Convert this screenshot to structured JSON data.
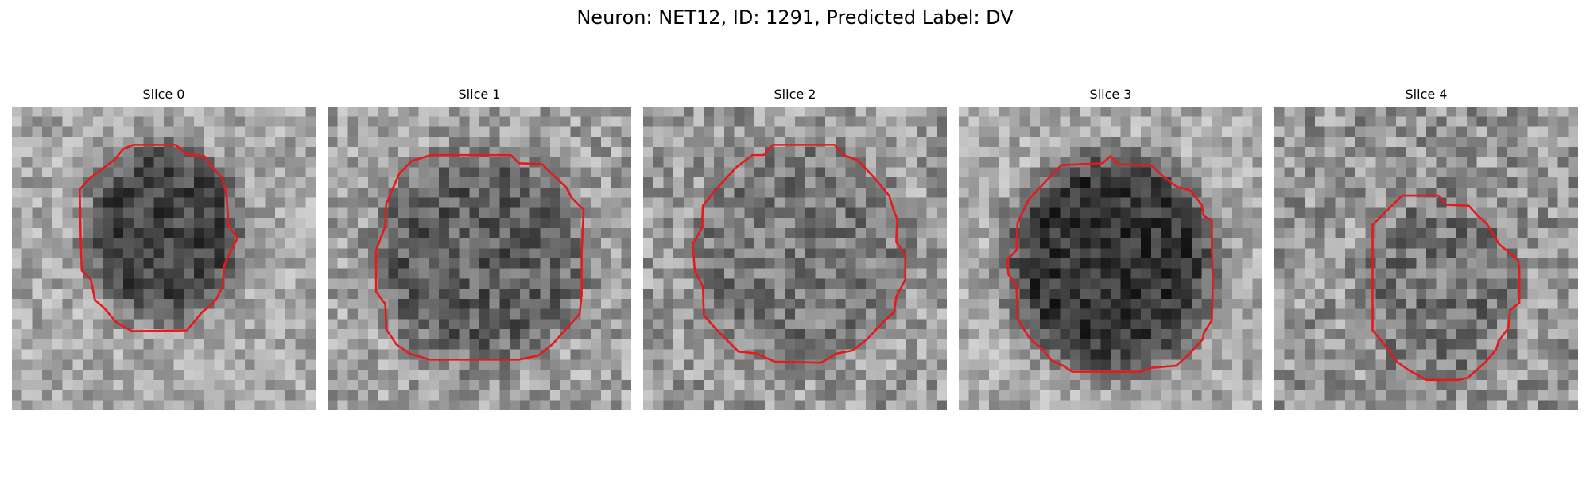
{
  "figure": {
    "title": "Neuron: NET12, ID: 1291, Predicted Label: DV"
  },
  "panels": [
    {
      "title": "Slice 0",
      "image": "grayscale-intensity-grid",
      "outline": "roi-contour"
    },
    {
      "title": "Slice 1",
      "image": "grayscale-intensity-grid",
      "outline": "roi-contour"
    },
    {
      "title": "Slice 2",
      "image": "grayscale-intensity-grid",
      "outline": "roi-contour"
    },
    {
      "title": "Slice 3",
      "image": "grayscale-intensity-grid",
      "outline": "roi-contour"
    },
    {
      "title": "Slice 4",
      "image": "grayscale-intensity-grid",
      "outline": "roi-contour"
    }
  ],
  "colors": {
    "contour": "#e41a1c",
    "background": "#ffffff"
  }
}
